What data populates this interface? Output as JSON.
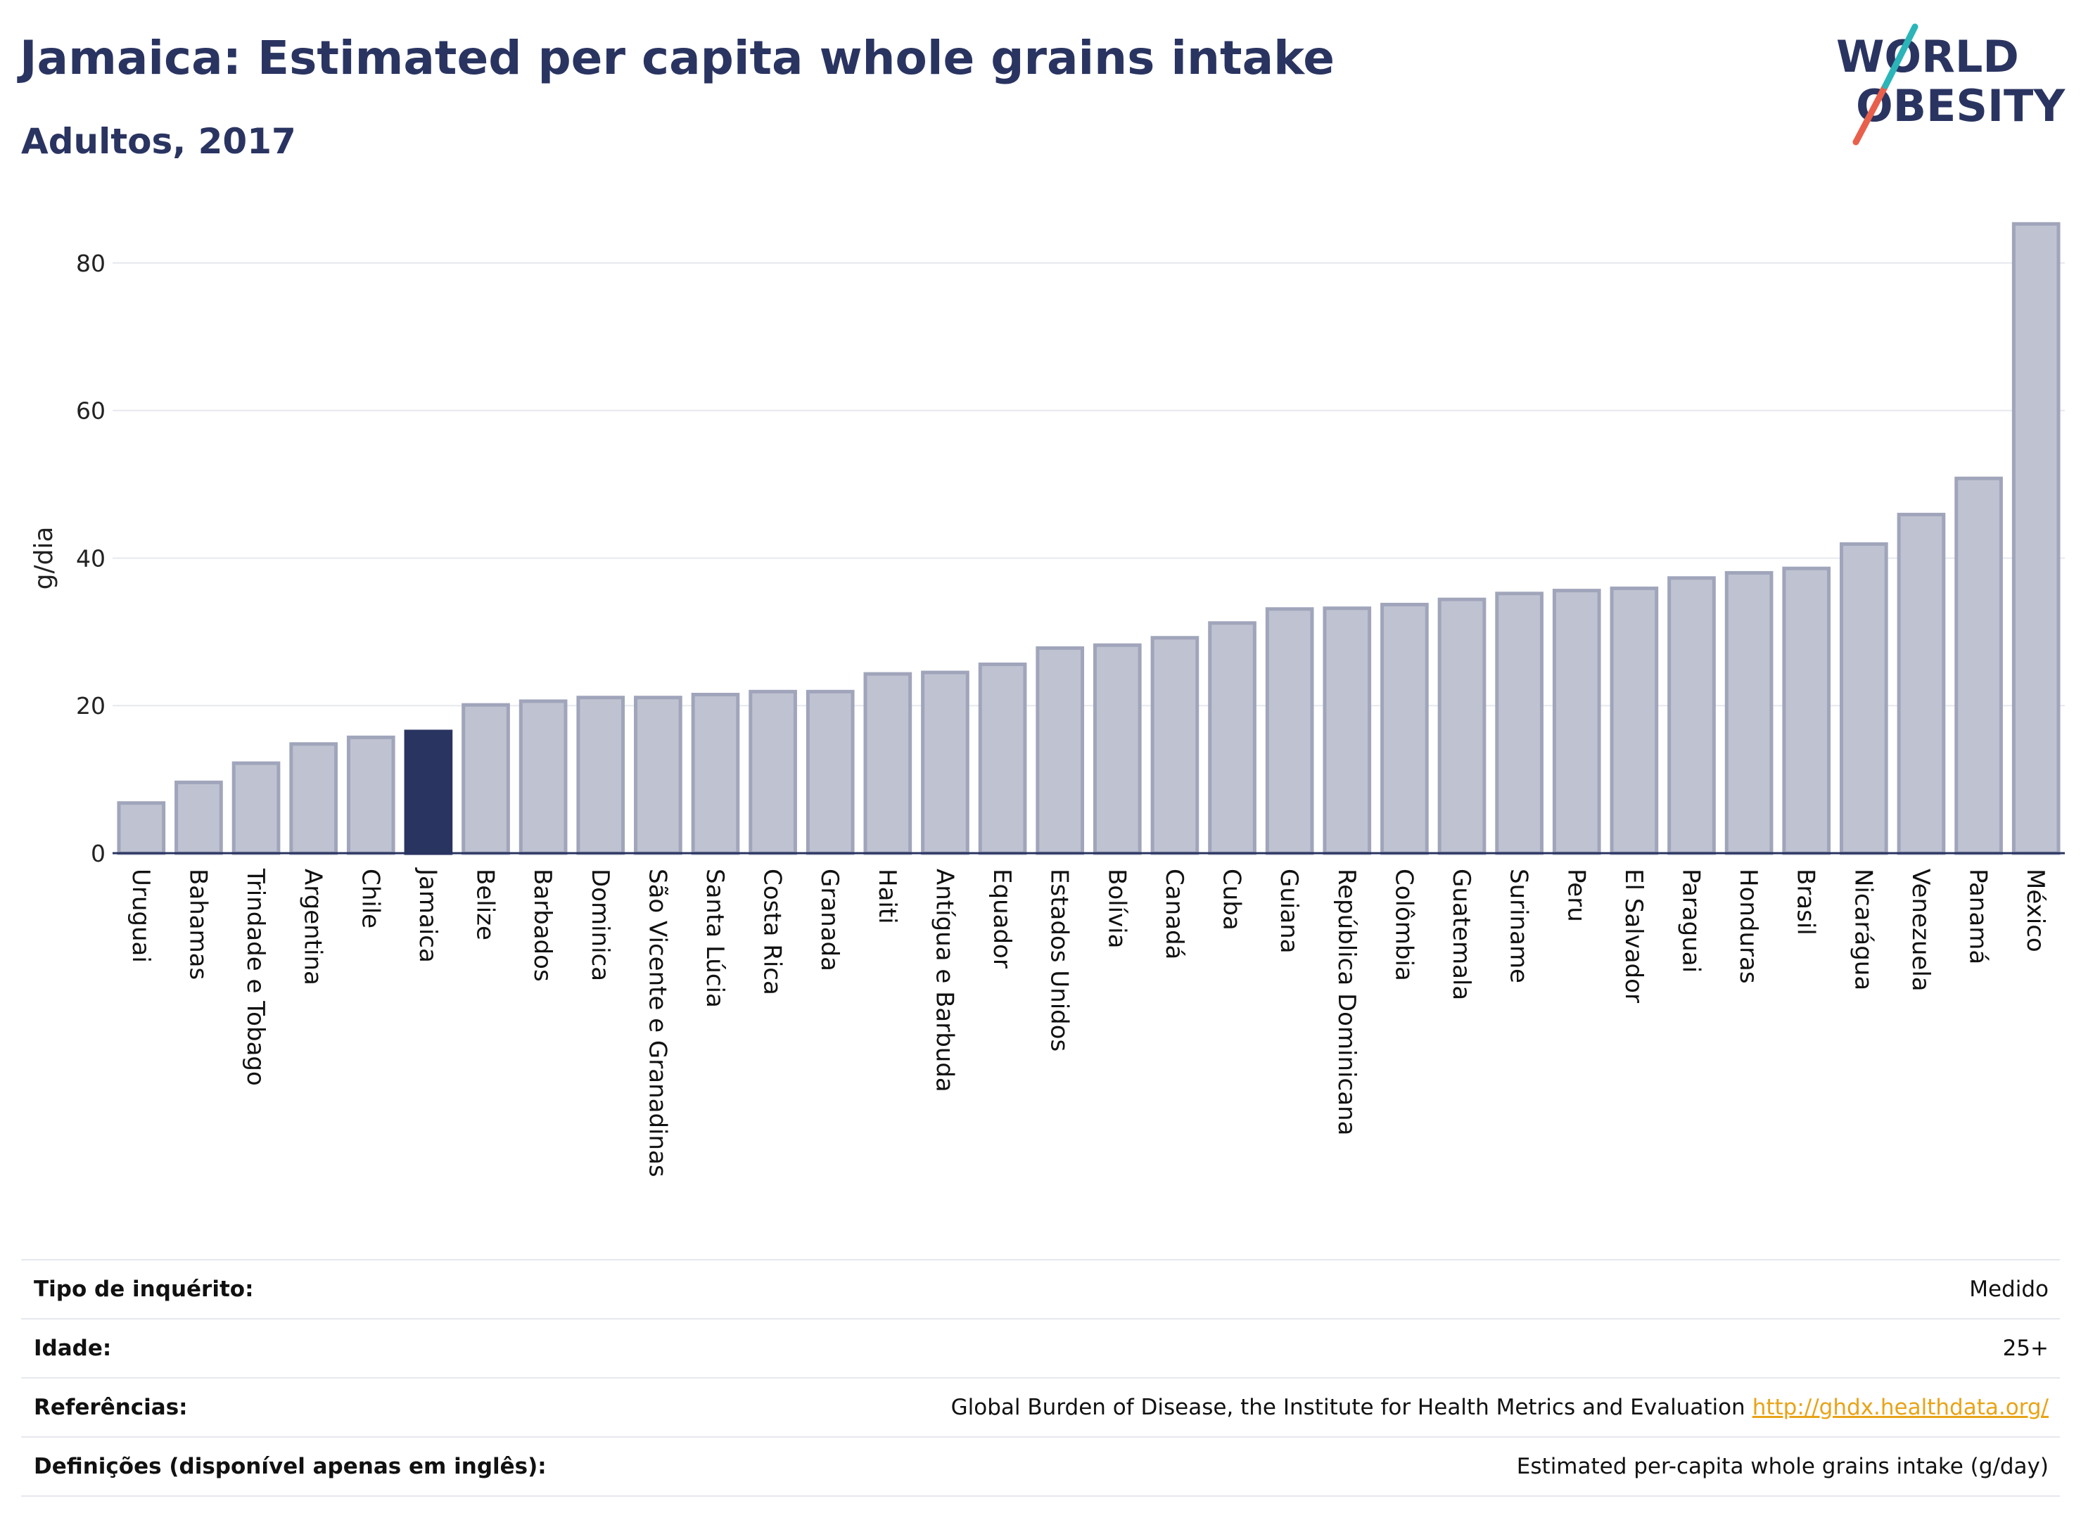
{
  "header": {
    "title": "Jamaica: Estimated per capita whole grains intake",
    "subtitle": "Adultos, 2017"
  },
  "logo": {
    "line1": "WORLD",
    "line2": "OBESITY",
    "colors": {
      "text": "#2a3461",
      "slash_red": "#e8604c",
      "slash_teal": "#2bb5b8"
    }
  },
  "colors": {
    "highlight_bar": "#2a3461",
    "bar_fill": "#bfc2d0",
    "bar_stroke": "#a0a5bb",
    "grid": "#e6e8ee",
    "axis": "#2a3461"
  },
  "chart_data": {
    "type": "bar",
    "ylabel": "g/dia",
    "ylim": [
      0,
      88
    ],
    "yticks": [
      0,
      20,
      40,
      60,
      80
    ],
    "highlight": "Jamaica",
    "categories": [
      "Uruguai",
      "Bahamas",
      "Trindade e Tobago",
      "Argentina",
      "Chile",
      "Jamaica",
      "Belize",
      "Barbados",
      "Dominica",
      "São Vicente e Granadinas",
      "Santa Lúcia",
      "Costa Rica",
      "Granada",
      "Haiti",
      "Antígua e Barbuda",
      "Equador",
      "Estados Unidos",
      "Bolívia",
      "Canadá",
      "Cuba",
      "Guiana",
      "República Dominicana",
      "Colômbia",
      "Guatemala",
      "Suriname",
      "Peru",
      "El Salvador",
      "Paraguai",
      "Honduras",
      "Brasil",
      "Nicarágua",
      "Venezuela",
      "Panamá",
      "México"
    ],
    "values": [
      6.8,
      9.6,
      12.2,
      14.8,
      15.7,
      16.5,
      20.1,
      20.6,
      21.1,
      21.1,
      21.5,
      21.9,
      21.9,
      24.3,
      24.5,
      25.6,
      27.8,
      28.2,
      29.2,
      31.2,
      33.1,
      33.2,
      33.7,
      34.4,
      35.2,
      35.6,
      35.9,
      37.3,
      38.0,
      38.6,
      41.9,
      45.9,
      50.8,
      85.3
    ]
  },
  "info": {
    "survey_label": "Tipo de inquérito:",
    "survey_value": "Medido",
    "age_label": "Idade:",
    "age_value": "25+",
    "refs_label": "Referências:",
    "refs_value": "Global Burden of Disease, the Institute for Health Metrics and Evaluation",
    "refs_link": "http://ghdx.healthdata.org/",
    "defs_label": "Definições (disponível apenas em inglês):",
    "defs_value": "Estimated per-capita whole grains intake (g/day)"
  }
}
